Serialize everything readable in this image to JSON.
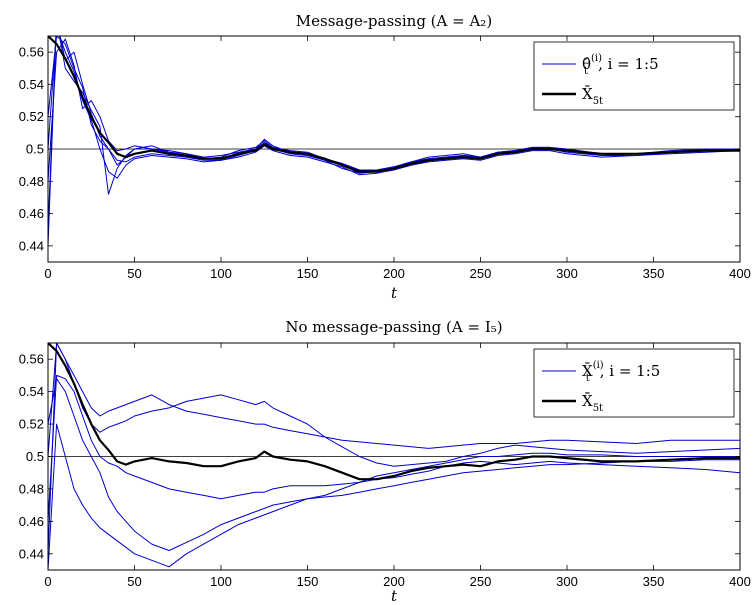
{
  "chart_data": [
    {
      "type": "line",
      "title": "Message-passing (A = A₂)",
      "xlabel": "t",
      "ylabel": "",
      "xlim": [
        0,
        400
      ],
      "ylim": [
        0.43,
        0.57
      ],
      "xticks": [
        0,
        50,
        100,
        150,
        200,
        250,
        300,
        350,
        400
      ],
      "xtick_labels": [
        "0",
        "50",
        "100",
        "150",
        "200",
        "250",
        "300",
        "350",
        "400"
      ],
      "yticks": [
        0.44,
        0.46,
        0.48,
        0.5,
        0.52,
        0.54,
        0.56
      ],
      "ytick_labels": [
        "0.44",
        "0.46",
        "0.48",
        "0.5",
        "0.52",
        "0.54",
        "0.56"
      ],
      "reference_line": 0.5,
      "legend_position": "top-right",
      "legend": [
        {
          "label": "θ̂",
          "sup": "(i)",
          "sub": "t",
          "suffix": ", i = 1:5",
          "color": "#0000cc"
        },
        {
          "label": "X̄",
          "sub": "5t",
          "color": "#000000"
        }
      ],
      "x": [
        0,
        5,
        10,
        15,
        20,
        25,
        30,
        35,
        40,
        45,
        50,
        60,
        70,
        80,
        90,
        100,
        110,
        120,
        125,
        130,
        140,
        150,
        160,
        170,
        180,
        190,
        200,
        210,
        220,
        230,
        240,
        250,
        260,
        270,
        280,
        290,
        300,
        320,
        340,
        360,
        380,
        400
      ],
      "series": [
        {
          "color": "#000000",
          "width": 2.2,
          "values": [
            0.57,
            0.565,
            0.556,
            0.545,
            0.532,
            0.52,
            0.51,
            0.504,
            0.497,
            0.495,
            0.497,
            0.499,
            0.497,
            0.496,
            0.494,
            0.494,
            0.497,
            0.499,
            0.503,
            0.5,
            0.498,
            0.497,
            0.494,
            0.49,
            0.486,
            0.486,
            0.488,
            0.491,
            0.493,
            0.494,
            0.495,
            0.494,
            0.497,
            0.498,
            0.5,
            0.5,
            0.499,
            0.497,
            0.497,
            0.498,
            0.499,
            0.499
          ]
        },
        {
          "color": "#0000cc",
          "width": 1,
          "values": [
            0.44,
            0.58,
            0.555,
            0.56,
            0.54,
            0.522,
            0.508,
            0.5,
            0.49,
            0.495,
            0.5,
            0.502,
            0.498,
            0.495,
            0.494,
            0.495,
            0.499,
            0.501,
            0.505,
            0.501,
            0.497,
            0.496,
            0.493,
            0.488,
            0.485,
            0.487,
            0.489,
            0.492,
            0.495,
            0.496,
            0.497,
            0.495,
            0.498,
            0.499,
            0.501,
            0.501,
            0.499,
            0.496,
            0.497,
            0.499,
            0.5,
            0.5
          ]
        },
        {
          "color": "#0000cc",
          "width": 1,
          "values": [
            0.5,
            0.575,
            0.56,
            0.548,
            0.53,
            0.518,
            0.5,
            0.486,
            0.482,
            0.49,
            0.494,
            0.496,
            0.495,
            0.494,
            0.492,
            0.493,
            0.495,
            0.498,
            0.502,
            0.499,
            0.496,
            0.495,
            0.492,
            0.489,
            0.484,
            0.485,
            0.487,
            0.49,
            0.492,
            0.493,
            0.494,
            0.493,
            0.496,
            0.497,
            0.499,
            0.499,
            0.497,
            0.495,
            0.496,
            0.497,
            0.498,
            0.499
          ]
        },
        {
          "color": "#0000cc",
          "width": 1,
          "values": [
            0.45,
            0.58,
            0.55,
            0.542,
            0.535,
            0.524,
            0.514,
            0.472,
            0.488,
            0.496,
            0.5,
            0.5,
            0.499,
            0.497,
            0.495,
            0.496,
            0.498,
            0.5,
            0.504,
            0.501,
            0.499,
            0.498,
            0.494,
            0.491,
            0.487,
            0.487,
            0.489,
            0.492,
            0.494,
            0.495,
            0.496,
            0.495,
            0.497,
            0.499,
            0.5,
            0.5,
            0.499,
            0.497,
            0.497,
            0.498,
            0.499,
            0.5
          ]
        },
        {
          "color": "#0000cc",
          "width": 1,
          "values": [
            0.52,
            0.57,
            0.565,
            0.55,
            0.538,
            0.515,
            0.505,
            0.5,
            0.493,
            0.492,
            0.495,
            0.497,
            0.496,
            0.495,
            0.493,
            0.493,
            0.496,
            0.499,
            0.502,
            0.5,
            0.497,
            0.496,
            0.493,
            0.49,
            0.485,
            0.486,
            0.488,
            0.49,
            0.493,
            0.494,
            0.495,
            0.494,
            0.497,
            0.498,
            0.5,
            0.5,
            0.498,
            0.496,
            0.496,
            0.498,
            0.499,
            0.499
          ]
        },
        {
          "color": "#0000cc",
          "width": 1,
          "values": [
            0.48,
            0.56,
            0.568,
            0.552,
            0.525,
            0.53,
            0.52,
            0.505,
            0.499,
            0.5,
            0.502,
            0.5,
            0.498,
            0.497,
            0.494,
            0.494,
            0.497,
            0.5,
            0.506,
            0.502,
            0.498,
            0.497,
            0.494,
            0.491,
            0.487,
            0.486,
            0.488,
            0.491,
            0.494,
            0.495,
            0.496,
            0.495,
            0.498,
            0.499,
            0.501,
            0.501,
            0.5,
            0.497,
            0.497,
            0.498,
            0.5,
            0.5
          ]
        }
      ]
    },
    {
      "type": "line",
      "title": "No message-passing (A = I₅)",
      "xlabel": "t",
      "ylabel": "",
      "xlim": [
        0,
        400
      ],
      "ylim": [
        0.43,
        0.57
      ],
      "xticks": [
        0,
        50,
        100,
        150,
        200,
        250,
        300,
        350,
        400
      ],
      "xtick_labels": [
        "0",
        "50",
        "100",
        "150",
        "200",
        "250",
        "300",
        "350",
        "400"
      ],
      "yticks": [
        0.44,
        0.46,
        0.48,
        0.5,
        0.52,
        0.54,
        0.56
      ],
      "ytick_labels": [
        "0.44",
        "0.46",
        "0.48",
        "0.5",
        "0.52",
        "0.54",
        "0.56"
      ],
      "reference_line": 0.5,
      "legend_position": "top-right",
      "legend": [
        {
          "label": "X̄",
          "sup": "(i)",
          "sub": "t",
          "suffix": ", i = 1:5",
          "color": "#0000cc"
        },
        {
          "label": "X̄",
          "sub": "5t",
          "color": "#000000"
        }
      ],
      "x": [
        0,
        5,
        10,
        15,
        20,
        25,
        30,
        35,
        40,
        45,
        50,
        60,
        70,
        80,
        90,
        100,
        110,
        120,
        125,
        130,
        140,
        150,
        160,
        170,
        180,
        190,
        200,
        210,
        220,
        230,
        240,
        250,
        260,
        270,
        280,
        290,
        300,
        320,
        340,
        360,
        380,
        400
      ],
      "series": [
        {
          "color": "#000000",
          "width": 2.2,
          "values": [
            0.57,
            0.565,
            0.556,
            0.545,
            0.532,
            0.52,
            0.51,
            0.504,
            0.497,
            0.495,
            0.497,
            0.499,
            0.497,
            0.496,
            0.494,
            0.494,
            0.497,
            0.499,
            0.503,
            0.5,
            0.498,
            0.497,
            0.494,
            0.49,
            0.486,
            0.486,
            0.488,
            0.491,
            0.493,
            0.494,
            0.495,
            0.494,
            0.497,
            0.498,
            0.5,
            0.5,
            0.499,
            0.497,
            0.497,
            0.498,
            0.499,
            0.499
          ]
        },
        {
          "color": "#0000cc",
          "width": 1,
          "values": [
            0.5,
            0.57,
            0.56,
            0.55,
            0.54,
            0.53,
            0.525,
            0.528,
            0.53,
            0.532,
            0.534,
            0.538,
            0.532,
            0.528,
            0.526,
            0.524,
            0.522,
            0.52,
            0.52,
            0.518,
            0.516,
            0.514,
            0.512,
            0.51,
            0.509,
            0.508,
            0.507,
            0.506,
            0.505,
            0.506,
            0.507,
            0.508,
            0.508,
            0.508,
            0.509,
            0.51,
            0.51,
            0.509,
            0.508,
            0.51,
            0.51,
            0.51
          ]
        },
        {
          "color": "#0000cc",
          "width": 1,
          "values": [
            0.44,
            0.57,
            0.56,
            0.545,
            0.53,
            0.52,
            0.515,
            0.518,
            0.52,
            0.522,
            0.525,
            0.528,
            0.53,
            0.534,
            0.536,
            0.538,
            0.535,
            0.532,
            0.534,
            0.53,
            0.525,
            0.52,
            0.512,
            0.506,
            0.5,
            0.496,
            0.494,
            0.495,
            0.496,
            0.497,
            0.5,
            0.502,
            0.505,
            0.507,
            0.506,
            0.505,
            0.504,
            0.503,
            0.502,
            0.503,
            0.504,
            0.505
          ]
        },
        {
          "color": "#0000cc",
          "width": 1,
          "values": [
            0.46,
            0.55,
            0.548,
            0.54,
            0.525,
            0.51,
            0.5,
            0.496,
            0.494,
            0.49,
            0.488,
            0.484,
            0.48,
            0.478,
            0.476,
            0.474,
            0.476,
            0.478,
            0.478,
            0.48,
            0.482,
            0.482,
            0.482,
            0.483,
            0.484,
            0.486,
            0.487,
            0.489,
            0.491,
            0.494,
            0.496,
            0.497,
            0.496,
            0.495,
            0.496,
            0.497,
            0.496,
            0.495,
            0.494,
            0.493,
            0.492,
            0.49
          ]
        },
        {
          "color": "#0000cc",
          "width": 1,
          "values": [
            0.52,
            0.548,
            0.54,
            0.525,
            0.51,
            0.5,
            0.49,
            0.475,
            0.466,
            0.46,
            0.454,
            0.446,
            0.442,
            0.447,
            0.452,
            0.458,
            0.462,
            0.466,
            0.468,
            0.47,
            0.472,
            0.474,
            0.475,
            0.476,
            0.478,
            0.48,
            0.482,
            0.484,
            0.486,
            0.488,
            0.49,
            0.491,
            0.492,
            0.493,
            0.494,
            0.495,
            0.495,
            0.496,
            0.497,
            0.497,
            0.498,
            0.498
          ]
        },
        {
          "color": "#0000cc",
          "width": 1,
          "values": [
            0.43,
            0.52,
            0.5,
            0.48,
            0.47,
            0.462,
            0.456,
            0.452,
            0.448,
            0.444,
            0.44,
            0.436,
            0.432,
            0.44,
            0.446,
            0.452,
            0.458,
            0.462,
            0.464,
            0.466,
            0.47,
            0.474,
            0.476,
            0.48,
            0.484,
            0.488,
            0.49,
            0.492,
            0.494,
            0.496,
            0.498,
            0.5,
            0.5,
            0.501,
            0.502,
            0.502,
            0.501,
            0.501,
            0.5,
            0.5,
            0.5,
            0.5
          ]
        }
      ]
    }
  ]
}
